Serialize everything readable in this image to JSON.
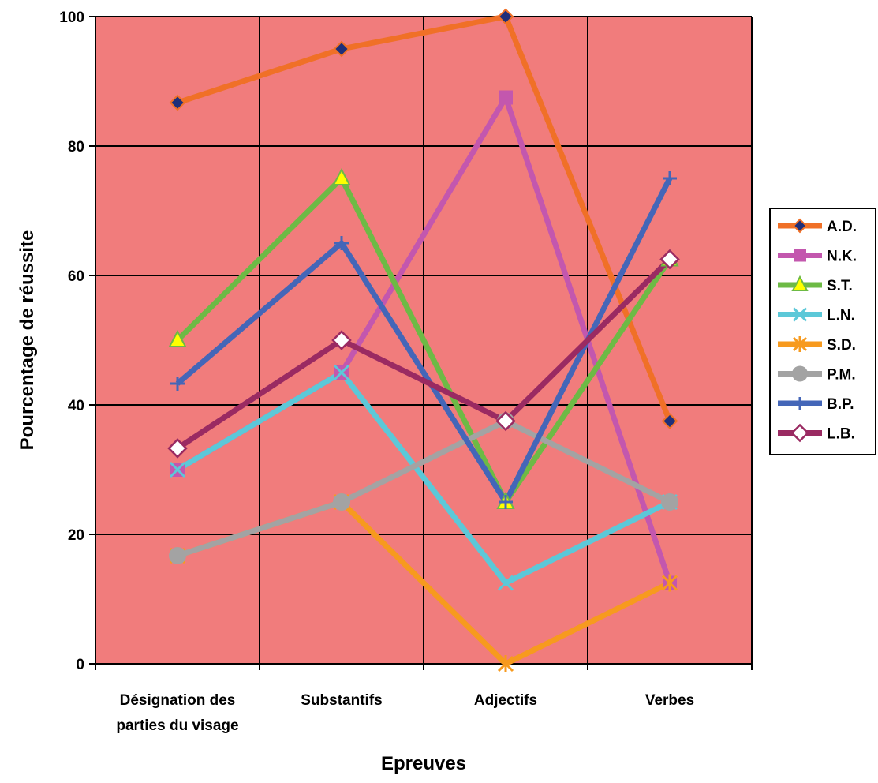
{
  "chart_data": {
    "type": "line",
    "xlabel": "Epreuves",
    "ylabel": "Pourcentage de réussite",
    "ylim": [
      0,
      100
    ],
    "yticks": [
      0,
      20,
      40,
      60,
      80,
      100
    ],
    "categories": [
      [
        "Désignation des",
        "parties du visage"
      ],
      [
        "Substantifs"
      ],
      [
        "Adjectifs"
      ],
      [
        "Verbes"
      ]
    ],
    "grid": true,
    "legend_position": "right",
    "plot_background": "#F17C7C",
    "series": [
      {
        "name": "A.D.",
        "color": "#F07027",
        "marker": "diamond-filled",
        "values": [
          86.7,
          95,
          100,
          37.5
        ]
      },
      {
        "name": "N.K.",
        "color": "#C357AE",
        "marker": "square",
        "values": [
          30,
          45,
          87.5,
          12.5
        ]
      },
      {
        "name": "S.T.",
        "color": "#6DBA45",
        "marker": "triangle",
        "values": [
          50,
          75,
          25,
          62.5
        ]
      },
      {
        "name": "L.N.",
        "color": "#5CC8D8",
        "marker": "x",
        "values": [
          30,
          45,
          12.5,
          25
        ]
      },
      {
        "name": "S.D.",
        "color": "#F79A1E",
        "marker": "star",
        "values": [
          16.7,
          25,
          0,
          12.5
        ]
      },
      {
        "name": "P.M.",
        "color": "#A3A3A3",
        "marker": "circle",
        "values": [
          16.7,
          25,
          37.5,
          25
        ]
      },
      {
        "name": "B.P.",
        "color": "#4466B8",
        "marker": "plus",
        "values": [
          43.3,
          65,
          25,
          75
        ]
      },
      {
        "name": "L.B.",
        "color": "#9A2A62",
        "marker": "diamond-open",
        "values": [
          33.3,
          50,
          37.5,
          62.5
        ]
      }
    ]
  }
}
